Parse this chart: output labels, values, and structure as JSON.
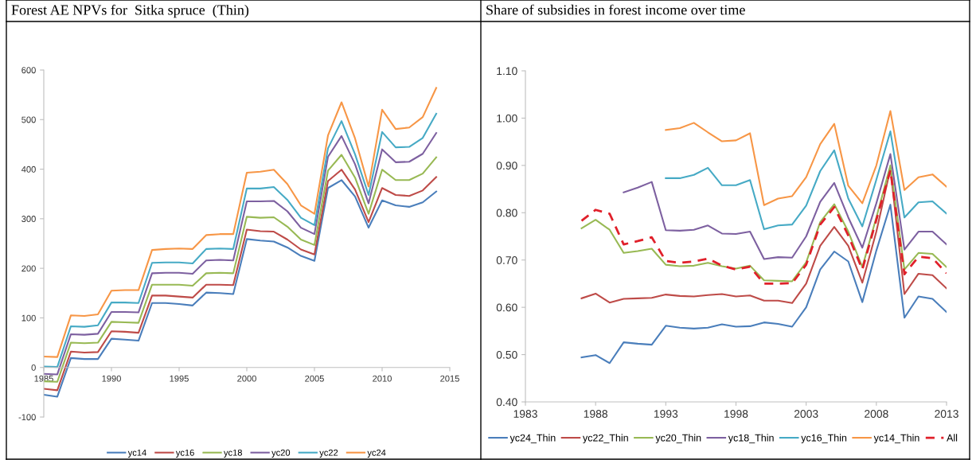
{
  "chart_data": [
    {
      "type": "line",
      "title": "Forest AE NPVs for  Sitka spruce  (Thin)",
      "x": [
        1985,
        1986,
        1987,
        1988,
        1989,
        1990,
        1991,
        1992,
        1993,
        1994,
        1995,
        1996,
        1997,
        1998,
        1999,
        2000,
        2001,
        2002,
        2003,
        2004,
        2005,
        2006,
        2007,
        2008,
        2009,
        2010,
        2011,
        2012,
        2013,
        2014
      ],
      "series": [
        {
          "name": "yc14",
          "color": "#4a7ebb",
          "values": [
            -55,
            -59,
            19,
            17,
            17,
            58,
            56,
            54,
            130,
            130,
            128,
            125,
            151,
            150,
            148,
            259,
            256,
            254,
            242,
            225,
            215,
            362,
            378,
            345,
            282,
            337,
            327,
            324,
            333,
            355
          ]
        },
        {
          "name": "yc16",
          "color": "#be4b48",
          "values": [
            -43,
            -46,
            32,
            30,
            31,
            73,
            72,
            70,
            145,
            145,
            143,
            141,
            167,
            167,
            166,
            278,
            275,
            274,
            258,
            238,
            228,
            376,
            399,
            359,
            293,
            362,
            348,
            346,
            357,
            384
          ]
        },
        {
          "name": "yc18",
          "color": "#98b954",
          "values": [
            -28,
            -29,
            50,
            49,
            50,
            92,
            91,
            90,
            167,
            167,
            167,
            165,
            190,
            191,
            190,
            304,
            302,
            303,
            284,
            258,
            247,
            397,
            429,
            383,
            310,
            399,
            378,
            378,
            391,
            424
          ]
        },
        {
          "name": "yc20",
          "color": "#7d60a0",
          "values": [
            -13,
            -14,
            67,
            66,
            68,
            112,
            112,
            111,
            190,
            191,
            191,
            189,
            216,
            217,
            216,
            335,
            335,
            336,
            315,
            282,
            269,
            425,
            467,
            410,
            331,
            440,
            414,
            415,
            431,
            473
          ]
        },
        {
          "name": "yc22",
          "color": "#46aac5",
          "values": [
            2,
            1,
            83,
            82,
            85,
            131,
            131,
            130,
            211,
            212,
            212,
            210,
            239,
            240,
            239,
            361,
            361,
            364,
            338,
            302,
            287,
            442,
            497,
            430,
            348,
            475,
            444,
            445,
            463,
            512
          ]
        },
        {
          "name": "yc24",
          "color": "#f79646",
          "values": [
            22,
            21,
            105,
            104,
            107,
            155,
            156,
            156,
            237,
            239,
            240,
            239,
            267,
            269,
            269,
            393,
            395,
            399,
            370,
            327,
            310,
            468,
            535,
            462,
            365,
            520,
            481,
            484,
            505,
            564
          ]
        }
      ],
      "xlim": [
        1985,
        2015
      ],
      "xticks": [
        1985,
        1990,
        1995,
        2000,
        2005,
        2010,
        2015
      ],
      "ylim": [
        -100,
        600
      ],
      "yticks": [
        -100,
        0,
        100,
        200,
        300,
        400,
        500,
        600
      ],
      "grid": false,
      "legend": "bottom",
      "line_style": "solid"
    },
    {
      "type": "line",
      "title": "Share of subsidies in forest income over time",
      "x": [
        1987,
        1988,
        1989,
        1990,
        1991,
        1992,
        1993,
        1994,
        1995,
        1996,
        1997,
        1998,
        1999,
        2000,
        2001,
        2002,
        2003,
        2004,
        2005,
        2006,
        2007,
        2008,
        2009,
        2010,
        2011,
        2012,
        2013
      ],
      "series": [
        {
          "name": "yc24_Thin",
          "color": "#4a7ebb",
          "values": [
            0.494,
            0.499,
            0.482,
            0.526,
            0.523,
            0.521,
            0.561,
            0.557,
            0.555,
            0.557,
            0.564,
            0.559,
            0.56,
            0.568,
            0.565,
            0.559,
            0.6,
            0.68,
            0.718,
            0.697,
            0.611,
            0.72,
            0.817,
            0.578,
            0.623,
            0.618,
            0.59
          ]
        },
        {
          "name": "yc22_Thin",
          "color": "#be4b48",
          "values": [
            0.619,
            0.629,
            0.61,
            0.618,
            0.619,
            0.62,
            0.627,
            0.624,
            0.623,
            0.626,
            0.628,
            0.623,
            0.625,
            0.614,
            0.614,
            0.609,
            0.65,
            0.73,
            0.77,
            0.73,
            0.652,
            0.76,
            0.893,
            0.628,
            0.671,
            0.668,
            0.64
          ]
        },
        {
          "name": "yc20_Thin",
          "color": "#98b954",
          "values": [
            0.767,
            0.785,
            0.764,
            0.715,
            0.719,
            0.724,
            0.69,
            0.687,
            0.688,
            0.694,
            0.687,
            0.682,
            0.688,
            0.657,
            0.656,
            0.655,
            0.695,
            0.78,
            0.818,
            0.76,
            0.685,
            0.79,
            0.9,
            0.68,
            0.715,
            0.713,
            0.685
          ]
        },
        {
          "name": "yc18_Thin",
          "color": "#7d60a0",
          "values": [
            null,
            null,
            null,
            0.843,
            0.853,
            0.865,
            0.763,
            0.762,
            0.764,
            0.773,
            0.756,
            0.755,
            0.76,
            0.702,
            0.706,
            0.705,
            0.75,
            0.823,
            0.863,
            0.79,
            0.726,
            0.82,
            0.924,
            0.722,
            0.76,
            0.76,
            0.733
          ]
        },
        {
          "name": "yc16_Thin",
          "color": "#46aac5",
          "values": [
            null,
            null,
            null,
            null,
            null,
            null,
            0.873,
            0.873,
            0.88,
            0.895,
            0.858,
            0.858,
            0.869,
            0.765,
            0.773,
            0.775,
            0.815,
            0.888,
            0.932,
            0.83,
            0.771,
            0.87,
            0.972,
            0.79,
            0.822,
            0.824,
            0.798
          ]
        },
        {
          "name": "yc14_Thin",
          "color": "#f79646",
          "values": [
            null,
            null,
            null,
            null,
            null,
            null,
            0.975,
            0.979,
            0.99,
            0.97,
            0.951,
            0.953,
            0.968,
            0.816,
            0.83,
            0.835,
            0.875,
            0.945,
            0.988,
            0.857,
            0.82,
            0.9,
            1.015,
            0.848,
            0.875,
            0.881,
            0.855
          ]
        },
        {
          "name": "All",
          "color": "#e0202a",
          "line_style": "dashed",
          "values": [
            0.783,
            0.806,
            0.798,
            0.733,
            0.74,
            0.748,
            0.698,
            0.694,
            0.697,
            0.703,
            0.688,
            0.68,
            0.686,
            0.65,
            0.65,
            0.651,
            0.69,
            0.775,
            0.812,
            0.752,
            0.68,
            0.785,
            0.89,
            0.67,
            0.707,
            0.704,
            0.672
          ]
        }
      ],
      "xlim": [
        1983,
        2013
      ],
      "xticks": [
        1983,
        1988,
        1993,
        1998,
        2003,
        2008,
        2013
      ],
      "ylim": [
        0.4,
        1.1
      ],
      "yticks": [
        {
          "value": 0.4,
          "label": "0.40"
        },
        {
          "value": 0.5,
          "label": "0.50"
        },
        {
          "value": 0.6,
          "label": "0.60"
        },
        {
          "value": 0.7,
          "label": "0.70"
        },
        {
          "value": 0.8,
          "label": "0.80"
        },
        {
          "value": 0.9,
          "label": "0.90"
        },
        {
          "value": 1.0,
          "label": "1.00"
        },
        {
          "value": 1.1,
          "label": "1.10"
        }
      ],
      "grid": false,
      "legend": "bottom",
      "line_style": "solid"
    }
  ]
}
